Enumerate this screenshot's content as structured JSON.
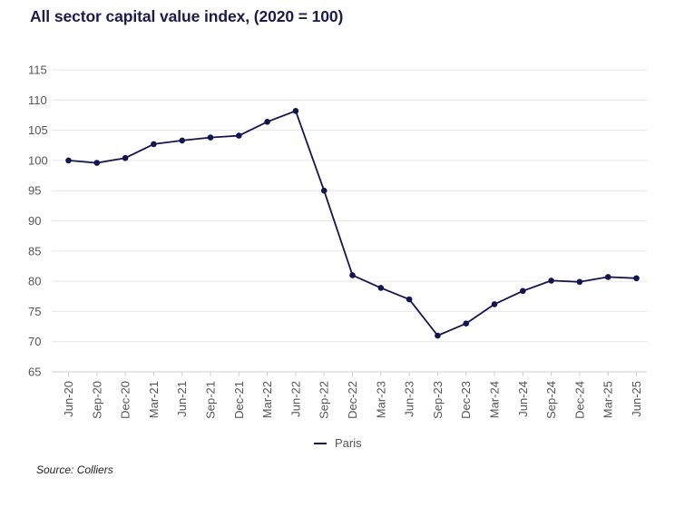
{
  "chart_data": {
    "type": "line",
    "title": "All sector capital value index, (2020 = 100)",
    "categories": [
      "Jun-20",
      "Sep-20",
      "Dec-20",
      "Mar-21",
      "Jun-21",
      "Sep-21",
      "Dec-21",
      "Mar-22",
      "Jun-22",
      "Sep-22",
      "Dec-22",
      "Mar-23",
      "Jun-23",
      "Sep-23",
      "Dec-23",
      "Mar-24",
      "Jun-24",
      "Sep-24",
      "Dec-24",
      "Mar-25",
      "Jun-25"
    ],
    "series": [
      {
        "name": "Paris",
        "color": "#13154f",
        "values": [
          100.0,
          99.6,
          100.4,
          102.7,
          103.3,
          103.8,
          104.1,
          106.4,
          108.2,
          95.0,
          81.0,
          78.9,
          77.0,
          71.0,
          73.0,
          76.2,
          78.4,
          80.1,
          79.9,
          80.7,
          80.5
        ]
      }
    ],
    "ylim": [
      65,
      115
    ],
    "yticks": [
      65,
      70,
      75,
      80,
      85,
      90,
      95,
      100,
      105,
      110,
      115
    ],
    "grid": true,
    "legend": "bottom-center",
    "xlabel": "",
    "ylabel": ""
  },
  "source": "Source: Colliers"
}
